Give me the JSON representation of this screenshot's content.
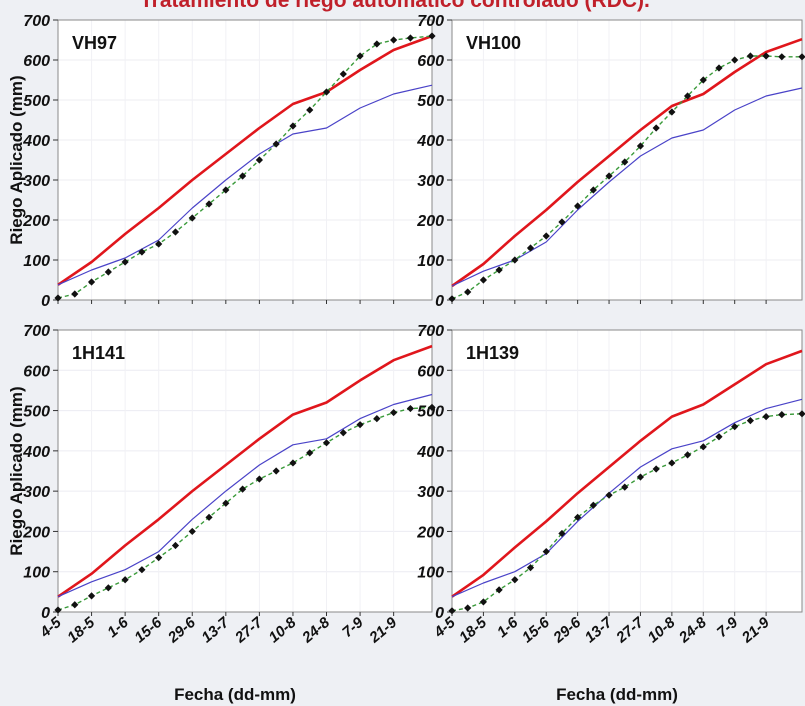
{
  "banner_text": "Tratamiento de riego automático controlado (RDC).",
  "colors": {
    "series_red": "#e0161c",
    "series_blue": "#4a43c8",
    "series_dots_line": "#3a9a3a",
    "series_dots_marker": "#111111",
    "panel_bg": "#ffffff",
    "frame": "#8a8a8a",
    "page_bg": "#eef0f4"
  },
  "chart_data": [
    {
      "type": "line",
      "panel_label": "VH97",
      "ylabel": "Riego Aplicado (mm)",
      "xlabel": "",
      "ylim": [
        0,
        700
      ],
      "yticks": [
        0,
        100,
        200,
        300,
        400,
        500,
        600,
        700
      ],
      "xticks": [
        "4-5",
        "18-5",
        "1-6",
        "15-6",
        "29-6",
        "13-7",
        "27-7",
        "10-8",
        "24-8",
        "7-9",
        "21-9"
      ],
      "xlim": [
        0,
        156
      ],
      "grid": true,
      "series": [
        {
          "style": "red",
          "x": [
            0,
            14,
            28,
            42,
            56,
            70,
            84,
            98,
            112,
            126,
            140,
            156
          ],
          "y": [
            38,
            95,
            165,
            230,
            300,
            365,
            430,
            490,
            520,
            575,
            625,
            660
          ]
        },
        {
          "style": "blue",
          "x": [
            0,
            14,
            28,
            42,
            56,
            70,
            84,
            98,
            112,
            126,
            140,
            156
          ],
          "y": [
            38,
            75,
            105,
            150,
            230,
            300,
            365,
            415,
            430,
            480,
            515,
            537
          ]
        },
        {
          "style": "dots",
          "x": [
            0,
            7,
            14,
            21,
            28,
            35,
            42,
            49,
            56,
            63,
            70,
            77,
            84,
            91,
            98,
            105,
            112,
            119,
            126,
            133,
            140,
            147,
            156
          ],
          "y": [
            5,
            15,
            45,
            70,
            95,
            120,
            140,
            170,
            205,
            240,
            275,
            310,
            350,
            390,
            435,
            475,
            520,
            565,
            610,
            640,
            650,
            655,
            660
          ]
        }
      ]
    },
    {
      "type": "line",
      "panel_label": "VH100",
      "ylabel": "",
      "xlabel": "",
      "ylim": [
        0,
        700
      ],
      "yticks": [
        0,
        100,
        200,
        300,
        400,
        500,
        600,
        700
      ],
      "xticks": [
        "4-5",
        "18-5",
        "1-6",
        "15-6",
        "29-6",
        "13-7",
        "27-7",
        "10-8",
        "24-8",
        "7-9",
        "21-9"
      ],
      "xlim": [
        0,
        156
      ],
      "grid": true,
      "series": [
        {
          "style": "red",
          "x": [
            0,
            14,
            28,
            42,
            56,
            70,
            84,
            98,
            112,
            126,
            140,
            156
          ],
          "y": [
            35,
            90,
            160,
            225,
            295,
            360,
            425,
            485,
            515,
            570,
            620,
            652
          ]
        },
        {
          "style": "blue",
          "x": [
            0,
            14,
            28,
            42,
            56,
            70,
            84,
            98,
            112,
            126,
            140,
            156
          ],
          "y": [
            35,
            72,
            100,
            145,
            225,
            295,
            360,
            405,
            425,
            475,
            510,
            530
          ]
        },
        {
          "style": "dots",
          "x": [
            0,
            7,
            14,
            21,
            28,
            35,
            42,
            49,
            56,
            63,
            70,
            77,
            84,
            91,
            98,
            105,
            112,
            119,
            126,
            133,
            140,
            147,
            156
          ],
          "y": [
            3,
            20,
            50,
            75,
            100,
            130,
            160,
            195,
            235,
            275,
            310,
            345,
            385,
            430,
            470,
            510,
            550,
            580,
            600,
            610,
            610,
            608,
            608
          ]
        }
      ]
    },
    {
      "type": "line",
      "panel_label": "1H141",
      "ylabel": "Riego Aplicado (mm)",
      "xlabel": "Fecha (dd-mm)",
      "ylim": [
        0,
        700
      ],
      "yticks": [
        0,
        100,
        200,
        300,
        400,
        500,
        600,
        700
      ],
      "xticks": [
        "4-5",
        "18-5",
        "1-6",
        "15-6",
        "29-6",
        "13-7",
        "27-7",
        "10-8",
        "24-8",
        "7-9",
        "21-9"
      ],
      "xlim": [
        0,
        156
      ],
      "grid": true,
      "series": [
        {
          "style": "red",
          "x": [
            0,
            14,
            28,
            42,
            56,
            70,
            84,
            98,
            112,
            126,
            140,
            156
          ],
          "y": [
            38,
            95,
            165,
            230,
            300,
            365,
            430,
            490,
            520,
            575,
            625,
            660
          ]
        },
        {
          "style": "blue",
          "x": [
            0,
            14,
            28,
            42,
            56,
            70,
            84,
            98,
            112,
            126,
            140,
            156
          ],
          "y": [
            38,
            75,
            105,
            150,
            230,
            300,
            365,
            415,
            430,
            480,
            515,
            540
          ]
        },
        {
          "style": "dots",
          "x": [
            0,
            7,
            14,
            21,
            28,
            35,
            42,
            49,
            56,
            63,
            70,
            77,
            84,
            91,
            98,
            105,
            112,
            119,
            126,
            133,
            140,
            147,
            156
          ],
          "y": [
            5,
            18,
            40,
            60,
            80,
            105,
            135,
            165,
            200,
            235,
            270,
            305,
            330,
            350,
            370,
            395,
            420,
            445,
            465,
            480,
            495,
            505,
            508
          ]
        }
      ]
    },
    {
      "type": "line",
      "panel_label": "1H139",
      "ylabel": "",
      "xlabel": "Fecha (dd-mm)",
      "ylim": [
        0,
        700
      ],
      "yticks": [
        0,
        100,
        200,
        300,
        400,
        500,
        600,
        700
      ],
      "xticks": [
        "4-5",
        "18-5",
        "1-6",
        "15-6",
        "29-6",
        "13-7",
        "27-7",
        "10-8",
        "24-8",
        "7-9",
        "21-9"
      ],
      "xlim": [
        0,
        156
      ],
      "grid": true,
      "series": [
        {
          "style": "red",
          "x": [
            0,
            14,
            28,
            42,
            56,
            70,
            84,
            98,
            112,
            126,
            140,
            156
          ],
          "y": [
            38,
            92,
            160,
            225,
            295,
            360,
            425,
            485,
            515,
            565,
            615,
            648
          ]
        },
        {
          "style": "blue",
          "x": [
            0,
            14,
            28,
            42,
            56,
            70,
            84,
            98,
            112,
            126,
            140,
            156
          ],
          "y": [
            38,
            72,
            100,
            145,
            225,
            295,
            360,
            405,
            425,
            470,
            505,
            528
          ]
        },
        {
          "style": "dots",
          "x": [
            0,
            7,
            14,
            21,
            28,
            35,
            42,
            49,
            56,
            63,
            70,
            77,
            84,
            91,
            98,
            105,
            112,
            119,
            126,
            133,
            140,
            147,
            156
          ],
          "y": [
            3,
            10,
            25,
            55,
            80,
            110,
            150,
            195,
            235,
            265,
            290,
            310,
            335,
            355,
            370,
            390,
            410,
            435,
            460,
            475,
            485,
            490,
            492
          ]
        }
      ]
    }
  ]
}
